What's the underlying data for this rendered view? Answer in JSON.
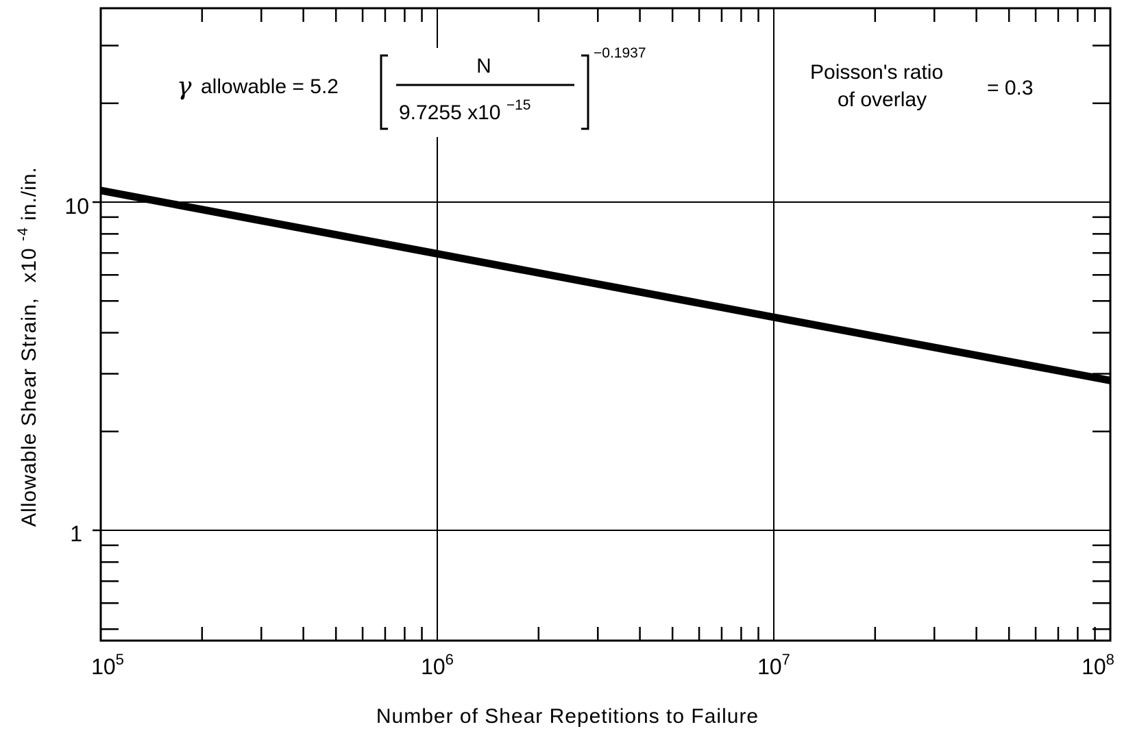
{
  "chart_data": {
    "type": "line",
    "x_scale": "log",
    "y_scale": "log",
    "xlabel": "Number of Shear Repetitions to Failure",
    "ylabel": "Allowable Shear Strain,",
    "ylabel_unit_base": "x10",
    "ylabel_unit_exp": "-4",
    "ylabel_unit_suffix": "in./in.",
    "xlim": [
      100000,
      100000000
    ],
    "ylim": [
      0.5,
      30
    ],
    "grid": true,
    "x_major_ticks": [
      {
        "value": 100000,
        "base": "10",
        "exp": "5"
      },
      {
        "value": 1000000,
        "base": "10",
        "exp": "6"
      },
      {
        "value": 10000000,
        "base": "10",
        "exp": "7"
      },
      {
        "value": 100000000,
        "base": "10",
        "exp": "8"
      }
    ],
    "y_major_ticks": [
      {
        "value": 1,
        "label": "1"
      },
      {
        "value": 10,
        "label": "10"
      }
    ],
    "series": [
      {
        "equation_coefficient": 5.2,
        "equation_reference_N": 9.7255e-15,
        "equation_exponent": -0.1937,
        "x": [
          100000,
          1000000,
          10000000,
          100000000
        ],
        "y": [
          10.85,
          6.96,
          4.46,
          2.86
        ]
      }
    ],
    "annotations": {
      "equation": {
        "lhs_symbol": "γ",
        "lhs_text": "allowable = 5.2",
        "numerator": "N",
        "denominator_base": "9.7255 x10",
        "denominator_exp": "−15",
        "exponent": "−0.1937"
      },
      "poisson": {
        "line1": "Poisson's  ratio",
        "line2": "of  overlay",
        "value": "= 0.3"
      }
    }
  }
}
